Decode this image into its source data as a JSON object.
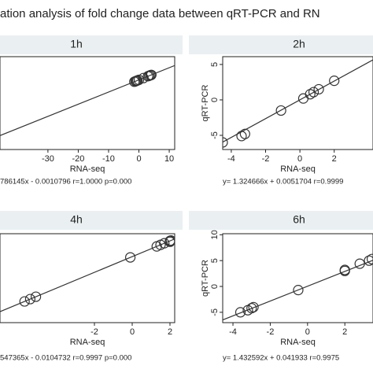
{
  "title": "ation analysis of fold change data between qRT-PCR and RN",
  "chart_data": [
    {
      "type": "scatter",
      "title": "1h",
      "xlabel": "RNA-seq",
      "annotation": "786145x - 0.0010796   r=1.0000   p=0.000",
      "x": [
        -1.5,
        -1.1,
        -0.8,
        -0.5,
        0.0,
        1.5,
        3.0,
        3.4,
        3.8,
        4.1
      ],
      "y": [
        -1.18,
        -0.87,
        -0.63,
        -0.39,
        0.0,
        1.18,
        2.36,
        2.67,
        2.99,
        3.22
      ],
      "fit": {
        "slope": 0.786145,
        "intercept": -0.0010796
      },
      "xlim": [
        -45.8,
        11.8
      ],
      "ylim": [
        -45,
        15
      ],
      "xticks": [
        -30,
        -20,
        -10,
        0,
        10
      ],
      "yticks": [],
      "color": "#333333"
    },
    {
      "type": "scatter",
      "title": "2h",
      "xlabel": "RNA-seq",
      "ylabel": "qRT-PCR",
      "annotation": "y= 1.324666x + 0.0051704   r=0.9999",
      "x": [
        -4.5,
        -3.4,
        -3.2,
        -1.1,
        0.2,
        0.6,
        0.8,
        1.1,
        2.0
      ],
      "y": [
        -6.0,
        -5.1,
        -4.8,
        -1.5,
        0.2,
        0.8,
        1.1,
        1.5,
        2.7
      ],
      "fit": {
        "slope": 1.324666,
        "intercept": 0.0051704
      },
      "xlim": [
        -4.5,
        4.26
      ],
      "ylim": [
        -7,
        6.1
      ],
      "xticks": [
        -4,
        -2,
        0,
        2
      ],
      "yticks": [
        -5,
        0,
        5
      ],
      "color": "#333333"
    },
    {
      "type": "scatter",
      "title": "4h",
      "xlabel": "RNA-seq",
      "annotation": "547365x - 0.0104732   r=0.9997   p=0.000",
      "x": [
        -5.7,
        -5.4,
        -5.1,
        -0.1,
        1.3,
        1.5,
        1.7,
        2.0,
        2.05,
        2.0
      ],
      "y": [
        -8.83,
        -8.36,
        -7.9,
        -0.16,
        2.0,
        2.31,
        2.62,
        3.09,
        3.16,
        2.9
      ],
      "fit": {
        "slope": 1.547365,
        "intercept": -0.0104732
      },
      "xlim": [
        -7,
        2.25
      ],
      "ylim": [
        -13,
        4.5
      ],
      "xticks": [
        -2,
        0,
        2
      ],
      "yticks": [],
      "color": "#333333"
    },
    {
      "type": "scatter",
      "title": "6h",
      "xlabel": "RNA-seq",
      "ylabel": "qRT-PCR",
      "annotation": "y= 1.432592x + 0.041933   r=0.9975",
      "x": [
        -3.6,
        -3.2,
        -3.0,
        -2.9,
        -0.5,
        2.0,
        2.0,
        2.8,
        3.3,
        3.45
      ],
      "y": [
        -5.0,
        -4.6,
        -4.2,
        -4.0,
        -0.7,
        3.0,
        3.2,
        4.4,
        5.0,
        5.3
      ],
      "fit": {
        "slope": 1.432592,
        "intercept": 0.041933
      },
      "xlim": [
        -4.55,
        3.51
      ],
      "ylim": [
        -7,
        10.2
      ],
      "xticks": [
        -4,
        -2,
        0,
        2
      ],
      "yticks": [
        -5,
        0,
        5,
        10
      ],
      "color": "#333333"
    }
  ]
}
